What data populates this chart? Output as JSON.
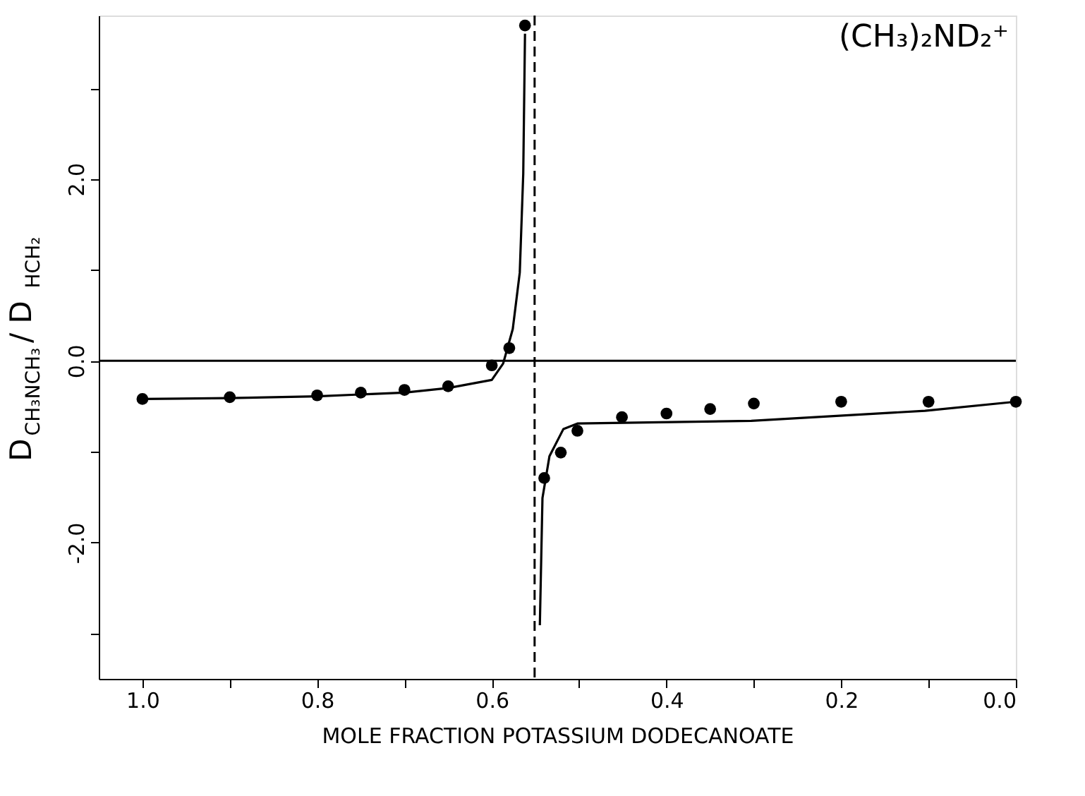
{
  "chart_data": {
    "type": "scatter",
    "xlabel": "MOLE FRACTION POTASSIUM DODECANOATE",
    "ylabel": "D$_{CH₃NCH₃}$ / D$_{HCH₂}$",
    "annotations": [
      "(CH₃)₂ND₂⁺"
    ],
    "series": [
      {
        "type": "scatter",
        "color": "#000000",
        "marker": "circle",
        "x": [
          1.0,
          0.9,
          0.8,
          0.75,
          0.7,
          0.65,
          0.6,
          0.58,
          0.562,
          0.54,
          0.521,
          0.502,
          0.451,
          0.4,
          0.35,
          0.3,
          0.2,
          0.1,
          0.0
        ],
        "values": [
          -0.42,
          -0.4,
          -0.38,
          -0.35,
          -0.32,
          -0.28,
          -0.05,
          0.14,
          3.69,
          -1.29,
          -1.01,
          -0.77,
          -0.62,
          -0.58,
          -0.53,
          -0.47,
          -0.45,
          -0.45,
          -0.45
        ]
      },
      {
        "type": "line",
        "color": "#000000",
        "marker": "none",
        "line_style": "solid",
        "x": [
          1.0,
          0.9,
          0.8,
          0.7,
          0.65,
          0.6,
          0.587,
          0.576,
          0.568,
          0.564,
          0.562
        ],
        "values": [
          -0.42,
          -0.41,
          -0.39,
          -0.35,
          -0.3,
          -0.21,
          -0.03,
          0.35,
          0.97,
          2.06,
          3.6
        ]
      },
      {
        "type": "line",
        "color": "#000000",
        "marker": "none",
        "line_style": "solid",
        "x": [
          0.545,
          0.542,
          0.534,
          0.518,
          0.502,
          0.303,
          0.104,
          0.0
        ],
        "values": [
          -2.91,
          -1.51,
          -1.05,
          -0.75,
          -0.69,
          -0.66,
          -0.55,
          -0.45
        ]
      }
    ],
    "xlim": [
      1.05,
      0.0
    ],
    "ylim": [
      -3.5,
      3.8
    ],
    "xticks": [
      {
        "value": 1,
        "label": "1.0"
      },
      {
        "value": 0.9,
        "label": null
      },
      {
        "value": 0.8,
        "label": "0.8"
      },
      {
        "value": 0.7,
        "label": null
      },
      {
        "value": 0.6,
        "label": "0.6"
      },
      {
        "value": 0.5,
        "label": null
      },
      {
        "value": 0.4,
        "label": "0.4"
      },
      {
        "value": 0.3,
        "label": null
      },
      {
        "value": 0.2,
        "label": "0.2"
      },
      {
        "value": 0.1,
        "label": null
      },
      {
        "value": 0,
        "label": "0.0"
      }
    ],
    "yticks": [
      {
        "value": -3,
        "label": null
      },
      {
        "value": -2,
        "label": "-2.0"
      },
      {
        "value": -1,
        "label": null
      },
      {
        "value": 0,
        "label": "0.0"
      },
      {
        "value": 1,
        "label": null
      },
      {
        "value": 2,
        "label": "2.0"
      },
      {
        "value": 3,
        "label": null
      }
    ],
    "ref_lines": [
      {
        "axis": "x",
        "value": 0.551,
        "color": "#000000",
        "line_style": "dashed"
      },
      {
        "axis": "y",
        "value": 0,
        "color": "#000000",
        "line_style": "solid"
      }
    ],
    "grid": false
  }
}
